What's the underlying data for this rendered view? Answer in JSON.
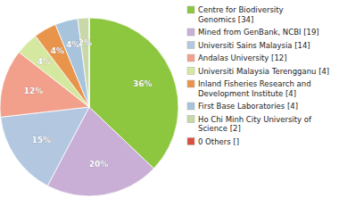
{
  "chart_data": {
    "type": "pie",
    "categories": [
      "Centre for Biodiversity\nGenomics [34]",
      "Mined from GenBank, NCBI [19]",
      "Universiti Sains Malaysia [14]",
      "Andalas University [12]",
      "Universiti Malaysia Terengganu [4]",
      "Inland Fisheries Research and\nDevelopment Institute [4]",
      "First Base Laboratories [4]",
      "Ho Chi Minh City University of\nScience [2]",
      "0 Others []"
    ],
    "values": [
      36,
      20,
      15,
      12,
      4,
      4,
      4,
      2,
      0.001
    ],
    "value_labels": [
      "36%",
      "20%",
      "15%",
      "12%",
      "4%",
      "4%",
      "4%",
      "2%",
      null
    ],
    "colors": [
      "#8dc63f",
      "#c9aed5",
      "#b3c8e0",
      "#f2a08c",
      "#d5e8a0",
      "#e8944a",
      "#a8c4dc",
      "#c8d8a8",
      "#d94f3d"
    ],
    "data_labels": true,
    "legend": "right"
  }
}
